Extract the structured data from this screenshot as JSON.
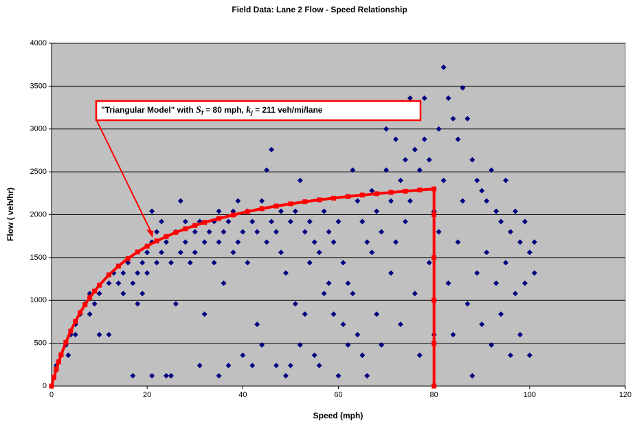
{
  "chart_data": {
    "type": "scatter",
    "title": "Field Data: Lane 2 Flow - Speed Relationship",
    "x_label": "Speed (mph)",
    "y_label": "Flow ( veh/hr)",
    "xlim": [
      0,
      120
    ],
    "xticks": [
      0,
      20,
      40,
      60,
      80,
      100,
      120
    ],
    "ylim": [
      0,
      4000
    ],
    "yticks": [
      0,
      500,
      1000,
      1500,
      2000,
      2500,
      3000,
      3500,
      4000
    ],
    "grid": true,
    "background": "#c0c0c0",
    "annotation": {
      "parts": [
        "\"Triangular Model\" with ",
        "S",
        "f",
        " = 80 mph, ",
        "k",
        "j",
        " = 211 veh/mi/lane"
      ],
      "color": "#ff0000"
    },
    "series": [
      {
        "color": "#000080",
        "marker": "diamond",
        "x": [
          1,
          2,
          3,
          3.5,
          4,
          5,
          5,
          6,
          7,
          8,
          8,
          9,
          10,
          10,
          12,
          12,
          13,
          14,
          15,
          15,
          16,
          17,
          17,
          18,
          18,
          19,
          19,
          20,
          20,
          21,
          21,
          21,
          22,
          22,
          23,
          23,
          24,
          24,
          25,
          25,
          26,
          26,
          27,
          27,
          28,
          28,
          29,
          30,
          30,
          31,
          31,
          32,
          32,
          33,
          34,
          34,
          35,
          35,
          35,
          36,
          36,
          37,
          37,
          38,
          38,
          39,
          39,
          40,
          40,
          41,
          41,
          42,
          42,
          43,
          43,
          44,
          44,
          45,
          45,
          46,
          46,
          47,
          47,
          48,
          48,
          49,
          49,
          50,
          50,
          51,
          51,
          52,
          52,
          53,
          53,
          54,
          54,
          55,
          55,
          56,
          56,
          57,
          57,
          58,
          58,
          59,
          59,
          60,
          60,
          61,
          61,
          62,
          62,
          63,
          63,
          64,
          64,
          65,
          65,
          66,
          66,
          67,
          67,
          68,
          68,
          69,
          69,
          70,
          70,
          71,
          71,
          72,
          72,
          73,
          73,
          74,
          74,
          75,
          75,
          76,
          76,
          77,
          77,
          78,
          78,
          79,
          79,
          80,
          80,
          81,
          81,
          82,
          82,
          83,
          83,
          84,
          84,
          85,
          85,
          86,
          86,
          87,
          87,
          88,
          88,
          89,
          89,
          90,
          90,
          91,
          91,
          92,
          92,
          93,
          93,
          94,
          94,
          95,
          95,
          96,
          96,
          97,
          97,
          98,
          98,
          99,
          99,
          100,
          100,
          101,
          101
        ],
        "values": [
          240,
          360,
          480,
          360,
          600,
          720,
          600,
          840,
          960,
          840,
          1080,
          960,
          1080,
          600,
          1200,
          600,
          1320,
          1200,
          1320,
          1080,
          1440,
          1200,
          120,
          1320,
          960,
          1440,
          1080,
          1560,
          1320,
          1680,
          2040,
          120,
          1800,
          1440,
          1920,
          1560,
          1680,
          120,
          1440,
          120,
          1800,
          960,
          2160,
          1560,
          1680,
          1920,
          1440,
          1800,
          1560,
          1920,
          240,
          840,
          1680,
          1800,
          1440,
          1920,
          1680,
          2040,
          120,
          1800,
          1200,
          1920,
          240,
          2040,
          1560,
          1680,
          2160,
          1800,
          360,
          2040,
          1440,
          1920,
          240,
          1800,
          720,
          2160,
          480,
          2520,
          1680,
          2760,
          1920,
          1800,
          240,
          2040,
          1560,
          1320,
          120,
          1920,
          240,
          2040,
          960,
          2400,
          480,
          1800,
          840,
          1920,
          1440,
          1680,
          360,
          1560,
          240,
          2040,
          1080,
          1800,
          1200,
          1680,
          840,
          1920,
          120,
          1440,
          720,
          1200,
          480,
          2520,
          1080,
          2160,
          600,
          1920,
          360,
          1680,
          120,
          2280,
          1560,
          2040,
          840,
          1800,
          480,
          3000,
          2520,
          2160,
          1320,
          2880,
          1680,
          2400,
          720,
          2640,
          1920,
          3360,
          2160,
          2760,
          1080,
          2520,
          360,
          3360,
          2880,
          2640,
          1440,
          2040,
          600,
          3000,
          1800,
          3720,
          2400,
          3360,
          1200,
          3120,
          600,
          2880,
          1680,
          3480,
          2160,
          3120,
          960,
          2640,
          120,
          2400,
          1320,
          2280,
          720,
          2160,
          1560,
          2520,
          480,
          2040,
          1200,
          1920,
          840,
          2400,
          1440,
          1800,
          360,
          2040,
          1080,
          1680,
          600,
          1920,
          1200,
          1560,
          360,
          1680,
          1320
        ]
      },
      {
        "color": "#ff0000",
        "marker": "square",
        "line": true,
        "x": [
          0,
          0.5,
          1,
          1.5,
          2,
          3,
          4,
          5,
          6,
          7,
          8,
          9,
          10,
          12,
          14,
          16,
          18,
          20,
          22,
          24,
          26,
          28,
          30,
          32,
          35,
          38,
          41,
          44,
          47,
          50,
          53,
          56,
          59,
          62,
          65,
          68,
          71,
          74,
          77,
          80,
          80,
          80,
          80,
          80,
          80
        ],
        "values": [
          0,
          101,
          196,
          283,
          364,
          511,
          641,
          756,
          858,
          950,
          1033,
          1108,
          1177,
          1298,
          1401,
          1489,
          1565,
          1633,
          1693,
          1745,
          1793,
          1836,
          1874,
          1910,
          1955,
          1997,
          2036,
          2070,
          2100,
          2126,
          2151,
          2173,
          2193,
          2212,
          2229,
          2245,
          2260,
          2274,
          2288,
          2300,
          2000,
          1500,
          1000,
          500,
          0
        ]
      }
    ]
  }
}
